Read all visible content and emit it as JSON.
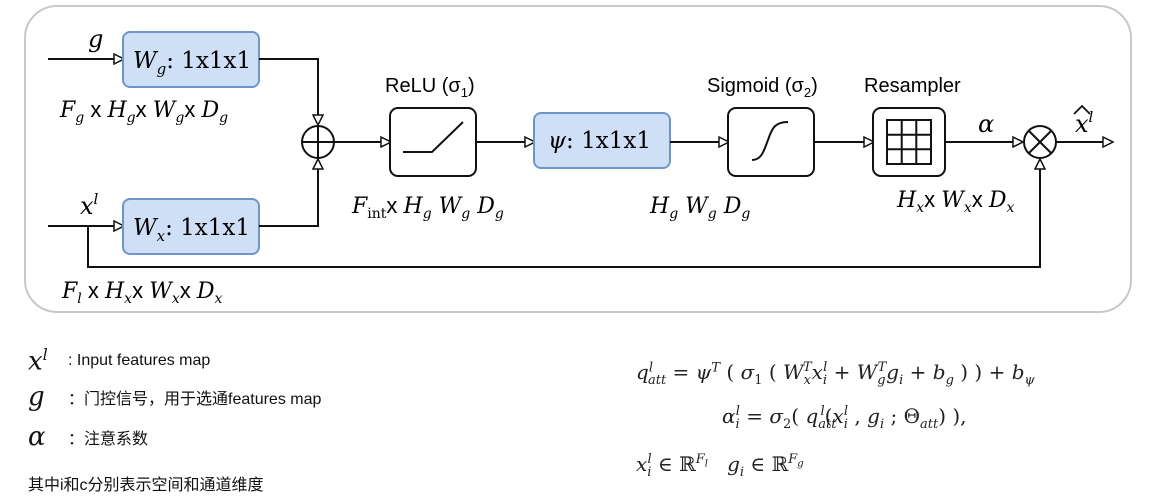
{
  "diagram": {
    "inputs": {
      "g": "g",
      "x": "x",
      "x_sup": "l"
    },
    "blocks": {
      "wg": {
        "sym": "W",
        "sub": "g",
        "rest": ": 1x1x1"
      },
      "wx": {
        "sym": "W",
        "sub": "x",
        "rest": ": 1x1x1"
      },
      "psi": {
        "sym": "ψ",
        "rest": ": 1x1x1"
      },
      "relu_title": "ReLU (σ",
      "relu_sub": "1",
      "sigmoid_title": "Sigmoid (σ",
      "sigmoid_sub": "2",
      "resampler_title": "Resampler"
    },
    "dims": {
      "fg": "F",
      "fg_sub": "g",
      "fx": "F",
      "fx_sub": "l",
      "fint": "F",
      "fint_sub": "int"
    },
    "labels": {
      "alpha": "α",
      "output": "x",
      "output_sup": "l"
    }
  },
  "legend": [
    {
      "symbol": "x",
      "sup": "l",
      "text": ": Input features map"
    },
    {
      "symbol": "g",
      "sup": "",
      "text": "：门控信号，用于选通features map"
    },
    {
      "symbol": "α",
      "sup": "",
      "text": "：注意系数"
    }
  ],
  "note": "其中i和c分别表示空间和通道维度"
}
